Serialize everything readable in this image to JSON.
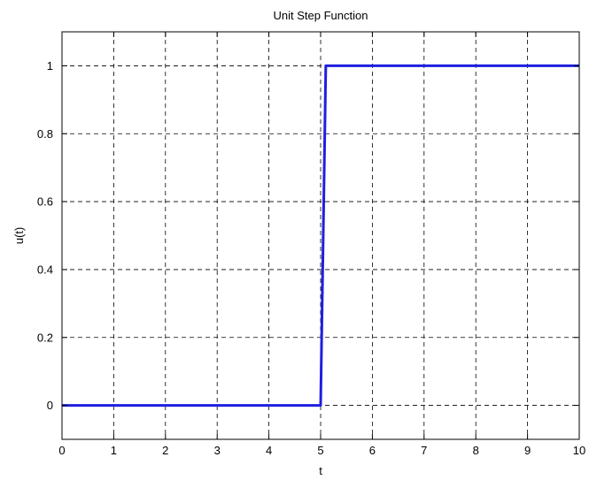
{
  "chart_data": {
    "type": "line",
    "title": "Unit Step Function",
    "xlabel": "t",
    "ylabel": "u(t)",
    "xlim": [
      0,
      10
    ],
    "ylim": [
      -0.1,
      1.1
    ],
    "xticks": [
      0,
      1,
      2,
      3,
      4,
      5,
      6,
      7,
      8,
      9,
      10
    ],
    "yticks": [
      0,
      0.2,
      0.4,
      0.6,
      0.8,
      1
    ],
    "xtick_labels": [
      "0",
      "1",
      "2",
      "3",
      "4",
      "5",
      "6",
      "7",
      "8",
      "9",
      "10"
    ],
    "ytick_labels": [
      "0",
      "0.2",
      "0.4",
      "0.6",
      "0.8",
      "1"
    ],
    "grid": true,
    "grid_style": "dashed",
    "series": [
      {
        "color": "#1f1fe0",
        "x": [
          0,
          5,
          5.1,
          10
        ],
        "y": [
          0,
          0,
          1,
          1
        ]
      }
    ]
  }
}
